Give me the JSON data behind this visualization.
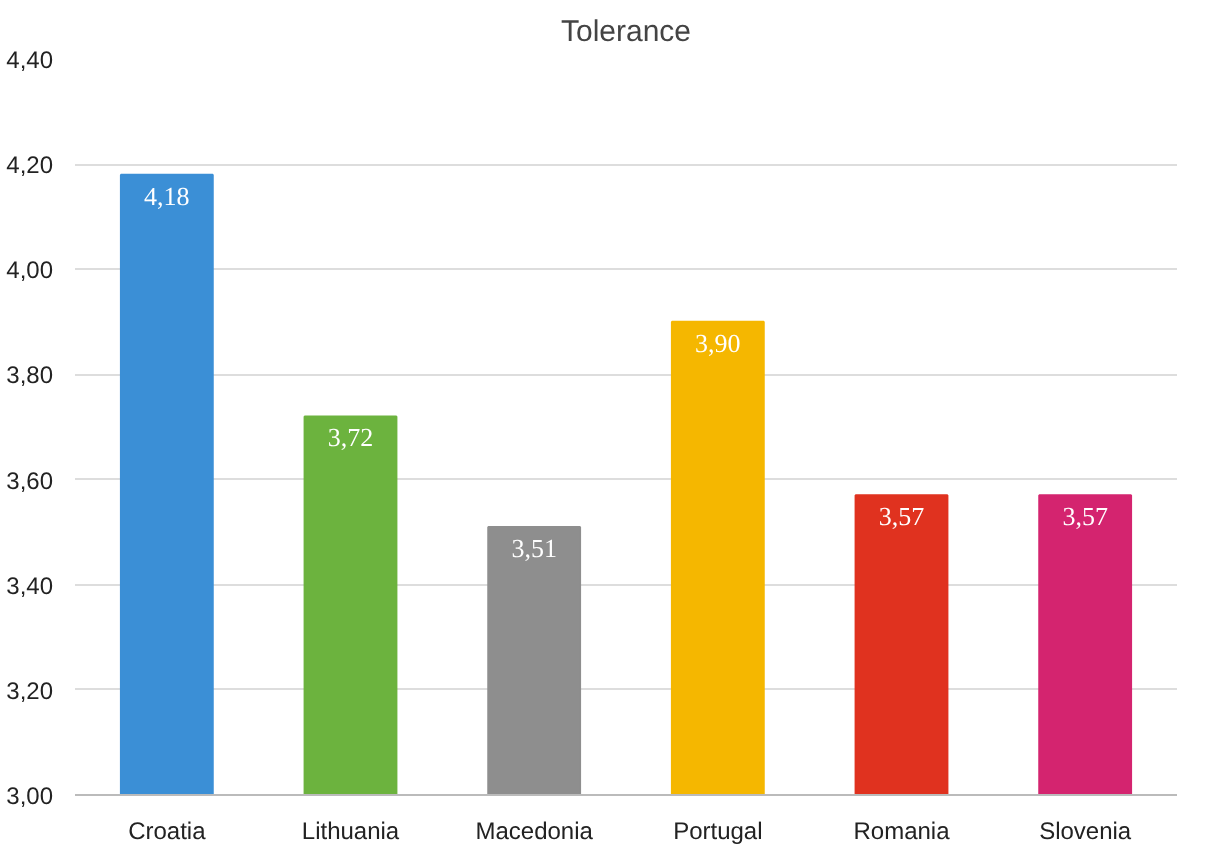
{
  "chart_data": {
    "type": "bar",
    "title": "Tolerance",
    "categories": [
      "Croatia",
      "Lithuania",
      "Macedonia",
      "Portugal",
      "Romania",
      "Slovenia"
    ],
    "values": [
      4.18,
      3.72,
      3.51,
      3.9,
      3.57,
      3.57
    ],
    "colors": [
      "#3b8fd6",
      "#6cb33e",
      "#8e8e8e",
      "#f5b700",
      "#e0321f",
      "#d4246f"
    ],
    "value_labels": [
      "4,18",
      "3,72",
      "3,51",
      "3,90",
      "3,57",
      "3,57"
    ],
    "ylim": [
      3.0,
      4.4
    ],
    "yticks": [
      {
        "value": 3.0,
        "label": "3,00"
      },
      {
        "value": 3.2,
        "label": "3,20"
      },
      {
        "value": 3.4,
        "label": "3,40"
      },
      {
        "value": 3.6,
        "label": "3,60"
      },
      {
        "value": 3.8,
        "label": "3,80"
      },
      {
        "value": 4.0,
        "label": "4,00"
      },
      {
        "value": 4.2,
        "label": "4,20"
      },
      {
        "value": 4.4,
        "label": "4,40"
      }
    ],
    "grid": "y"
  }
}
